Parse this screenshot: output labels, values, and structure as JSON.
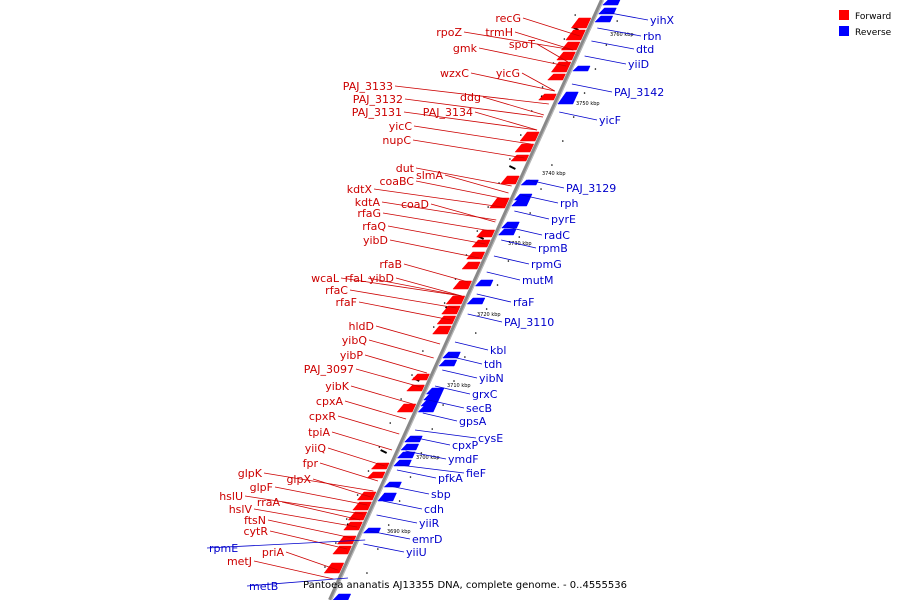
{
  "caption": "Pantoea ananatis AJ13355 DNA, complete genome. - 0..4555536",
  "legend": {
    "forward": {
      "label": "Forward",
      "color": "#ff0000"
    },
    "reverse": {
      "label": "Reverse",
      "color": "#0000ff"
    }
  },
  "ticks": [
    "3690 kbp",
    "3700 kbp",
    "3710 kbp",
    "3720 kbp",
    "3730 kbp",
    "3740 kbp",
    "3750 kbp",
    "3760 kbp"
  ],
  "genes_forward": [
    "recG",
    "trmH",
    "rpoZ",
    "spoT",
    "gmk",
    "wzxC",
    "yicG",
    "PAJ_3133",
    "ddg",
    "PAJ_3132",
    "PAJ_3131",
    "PAJ_3134",
    "yicC",
    "nupC",
    "dut",
    "slmA",
    "coaBC",
    "kdtX",
    "kdtA",
    "coaD",
    "rfaG",
    "rfaQ",
    "yibD",
    "rfaB",
    "wcaL",
    "rfaL",
    "yibD",
    "rfaC",
    "rfaF",
    "hldD",
    "yibQ",
    "yibP",
    "PAJ_3097",
    "yibK",
    "cpxA",
    "cpxR",
    "tpiA",
    "yiiQ",
    "fpr",
    "glpX",
    "glpK",
    "glpF",
    "hslU",
    "rraA",
    "hslV",
    "ftsN",
    "cytR",
    "priA",
    "metJ"
  ],
  "genes_reverse": [
    "yihX",
    "rbn",
    "dtd",
    "yiiD",
    "PAJ_3142",
    "yicF",
    "PAJ_3129",
    "rph",
    "pyrE",
    "radC",
    "rpmB",
    "rpmG",
    "mutM",
    "rfaF",
    "PAJ_3110",
    "kbl",
    "tdh",
    "yibN",
    "grxC",
    "secB",
    "gpsA",
    "cysE",
    "cpxP",
    "ymdF",
    "fieF",
    "pfkA",
    "sbp",
    "cdh",
    "yiiR",
    "emrD",
    "yiiU",
    "rpmE",
    "metB"
  ]
}
